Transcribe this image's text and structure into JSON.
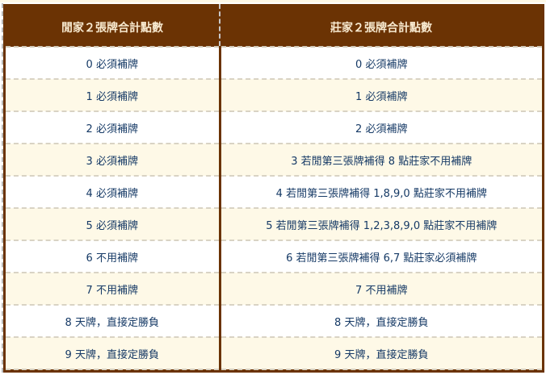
{
  "table": {
    "headers": [
      "閒家２張牌合計點數",
      "莊家２張牌合計點數"
    ],
    "rows": [
      [
        "0 必須補牌",
        "0 必須補牌"
      ],
      [
        "1 必須補牌",
        "1 必須補牌"
      ],
      [
        "2 必須補牌",
        "2 必須補牌"
      ],
      [
        "3 必須補牌",
        "3 若閒第三張牌補得 8 點莊家不用補牌"
      ],
      [
        "4 必須補牌",
        "4 若閒第三張牌補得 1,8,9,0 點莊家不用補牌"
      ],
      [
        "5 必須補牌",
        "5 若閒第三張牌補得 1,2,3,8,9,0 點莊家不用補牌"
      ],
      [
        "6 不用補牌",
        "6 若閒第三張牌補得 6,7 點莊家必須補牌"
      ],
      [
        "7 不用補牌",
        "7 不用補牌"
      ],
      [
        "8 天牌，直接定勝負",
        "8 天牌，直接定勝負"
      ],
      [
        "9 天牌，直接定勝負",
        "9 天牌，直接定勝負"
      ]
    ]
  },
  "colors": {
    "header_bg": "#6b3304",
    "header_text": "#f8ead0",
    "body_text": "#163a66",
    "row_alt": "#fef9e7"
  }
}
